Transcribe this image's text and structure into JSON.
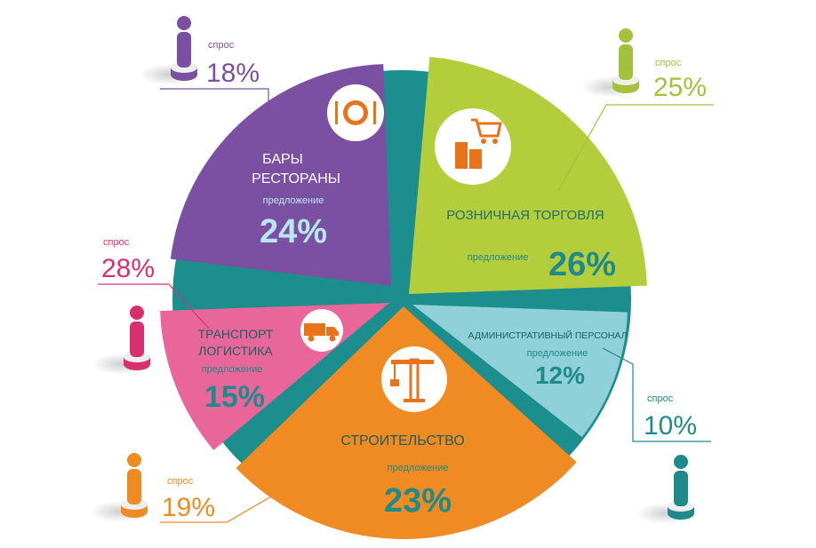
{
  "chart_data": {
    "type": "pie",
    "title": "",
    "supply_label": "предложение",
    "demand_label": "спрос",
    "sectors": [
      {
        "label": "БАРЫ\nРЕСТОРАНЫ",
        "supply": 24,
        "supply_text": "24%",
        "demand": 18,
        "demand_text": "18%",
        "color": "#7b4fa1",
        "icon": "plate-fork-knife-icon"
      },
      {
        "label": "РОЗНИЧНАЯ ТОРГОВЛЯ",
        "supply": 26,
        "supply_text": "26%",
        "demand": 25,
        "demand_text": "25%",
        "color": "#b4cd3a",
        "icon": "shopping-cart-register-icon"
      },
      {
        "label": "АДМИНИСТРАТИВНЫЙ ПЕРСОНАЛ",
        "supply": 12,
        "supply_text": "12%",
        "demand": 10,
        "demand_text": "10%",
        "color": "#8fd0d9",
        "icon": ""
      },
      {
        "label": "СТРОИТЕЛЬСТВО",
        "supply": 23,
        "supply_text": "23%",
        "demand": 19,
        "demand_text": "19%",
        "color": "#f08a22",
        "icon": "crane-icon"
      },
      {
        "label": "ТРАНСПОРТ\nЛОГИСТИКА",
        "supply": 15,
        "supply_text": "15%",
        "demand": 28,
        "demand_text": "28%",
        "color": "#e8669a",
        "icon": "truck-icon"
      }
    ],
    "base_color": "#1d8e8e",
    "text_color": "#1f8a8a",
    "demand_colors": [
      "#7b4fa1",
      "#a3c13a",
      "#1f8a8a",
      "#f08a22",
      "#d8306f"
    ]
  }
}
